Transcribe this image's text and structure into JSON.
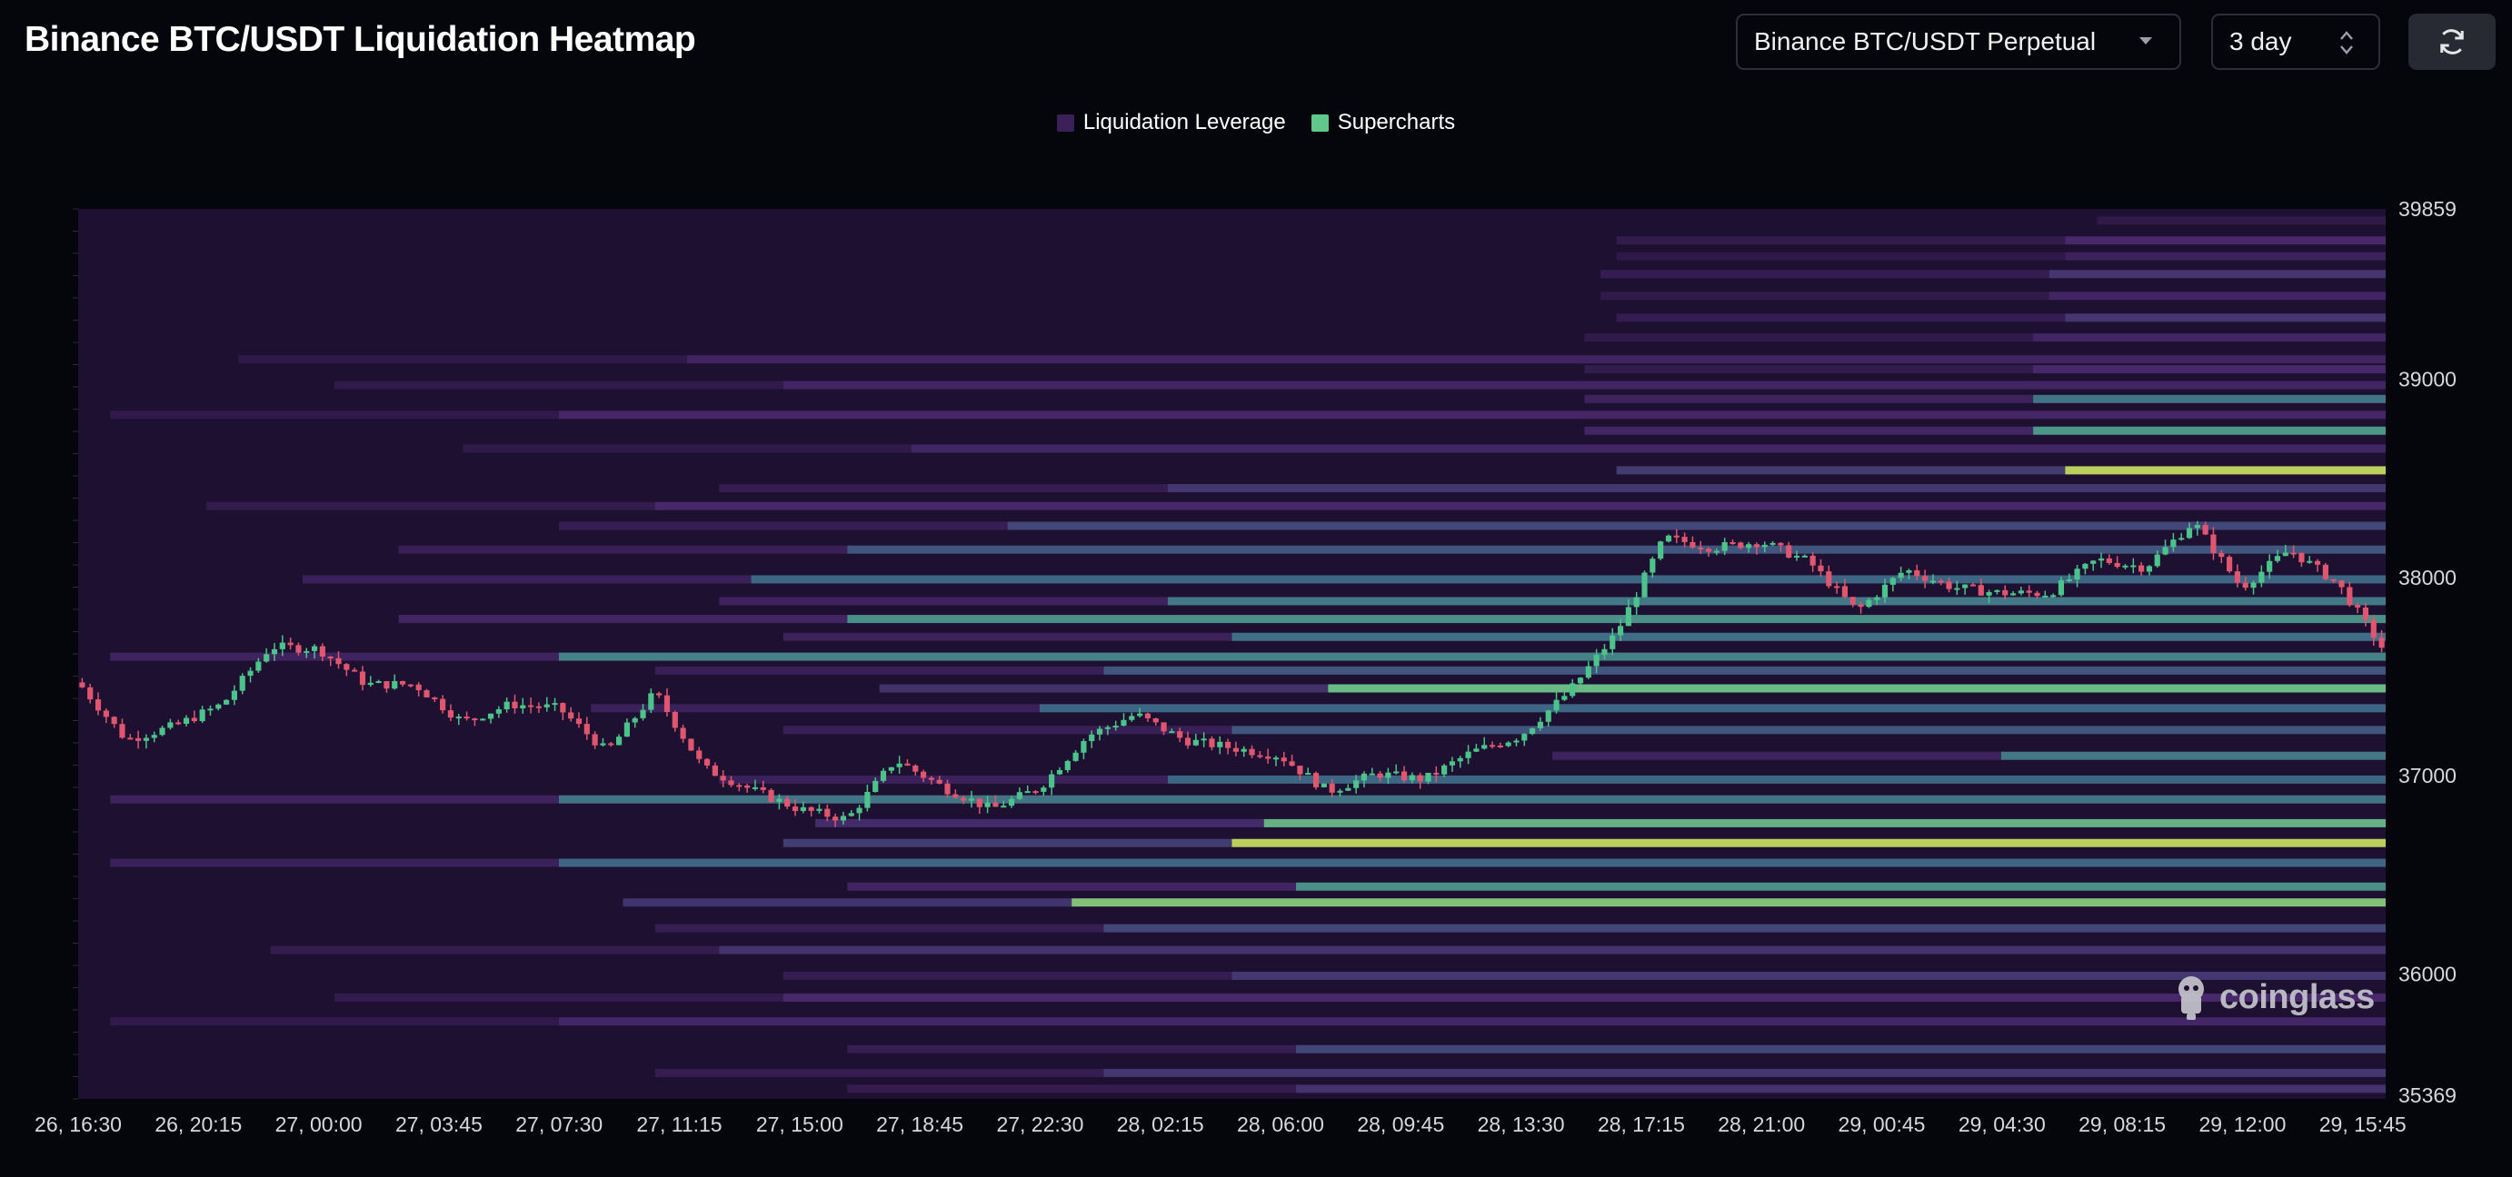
{
  "header": {
    "title": "Binance BTC/USDT Liquidation Heatmap",
    "market_select": "Binance BTC/USDT Perpetual",
    "period_select": "3 day",
    "refresh_icon": "refresh-icon"
  },
  "legend": {
    "items": [
      {
        "label": "Liquidation Leverage",
        "color": "#3a1f58"
      },
      {
        "label": "Supercharts",
        "color": "#5fc88a"
      }
    ]
  },
  "watermark": "coinglass",
  "colors": {
    "background": "#05060b",
    "heatmap_low": "#1d1030",
    "heatmap_high": "#f4e64a",
    "candle_up": "#4cc38a",
    "candle_down": "#e0566f"
  },
  "chart_data": {
    "type": "heatmap",
    "title": "Binance BTC/USDT Liquidation Heatmap",
    "x_ticks": [
      "26, 16:30",
      "26, 20:15",
      "27, 00:00",
      "27, 03:45",
      "27, 07:30",
      "27, 11:15",
      "27, 15:00",
      "27, 18:45",
      "27, 22:30",
      "28, 02:15",
      "28, 06:00",
      "28, 09:45",
      "28, 13:30",
      "28, 17:15",
      "28, 21:00",
      "29, 00:45",
      "29, 04:30",
      "29, 08:15",
      "29, 12:00",
      "29, 15:45"
    ],
    "y_ticks": [
      39859,
      39000,
      38000,
      37000,
      36000,
      35369
    ],
    "ylim": [
      35369,
      39859
    ],
    "x_range_hours": [
      0,
      72
    ],
    "y_axis_position": "right",
    "legend_position": "top-center",
    "grid": false,
    "price_path": [
      [
        0,
        37470
      ],
      [
        1.5,
        37180
      ],
      [
        3,
        37250
      ],
      [
        4.5,
        37360
      ],
      [
        6,
        37650
      ],
      [
        7.5,
        37640
      ],
      [
        9,
        37460
      ],
      [
        10.5,
        37460
      ],
      [
        12,
        37270
      ],
      [
        13.5,
        37360
      ],
      [
        15,
        37340
      ],
      [
        16.5,
        37120
      ],
      [
        18,
        37420
      ],
      [
        19.5,
        37040
      ],
      [
        21,
        36930
      ],
      [
        22.5,
        36830
      ],
      [
        24,
        36780
      ],
      [
        25.5,
        37080
      ],
      [
        27,
        36940
      ],
      [
        28.5,
        36830
      ],
      [
        30,
        36940
      ],
      [
        31.5,
        37200
      ],
      [
        33,
        37310
      ],
      [
        34.5,
        37180
      ],
      [
        36,
        37140
      ],
      [
        37.5,
        37100
      ],
      [
        39,
        36920
      ],
      [
        40.5,
        37010
      ],
      [
        42,
        36980
      ],
      [
        43.5,
        37120
      ],
      [
        45,
        37200
      ],
      [
        46.5,
        37420
      ],
      [
        48,
        37720
      ],
      [
        49.5,
        38200
      ],
      [
        51,
        38150
      ],
      [
        52.5,
        38180
      ],
      [
        54,
        38080
      ],
      [
        55.5,
        37830
      ],
      [
        57,
        38040
      ],
      [
        58.5,
        37950
      ],
      [
        60,
        37920
      ],
      [
        61.5,
        37920
      ],
      [
        63,
        38090
      ],
      [
        64.5,
        38050
      ],
      [
        66,
        38280
      ],
      [
        67.5,
        37950
      ],
      [
        69,
        38140
      ],
      [
        70.5,
        37970
      ],
      [
        72,
        37620
      ]
    ],
    "liquidation_bands": [
      {
        "price": 39800,
        "from_h": 63,
        "level": 0.3
      },
      {
        "price": 39700,
        "from_h": 48,
        "level": 0.35
      },
      {
        "price": 39620,
        "from_h": 48,
        "level": 0.25
      },
      {
        "price": 39530,
        "from_h": 47.5,
        "level": 0.4
      },
      {
        "price": 39420,
        "from_h": 47.5,
        "level": 0.3
      },
      {
        "price": 39310,
        "from_h": 48,
        "level": 0.4
      },
      {
        "price": 39210,
        "from_h": 47,
        "level": 0.3
      },
      {
        "price": 39100,
        "from_h": 5,
        "level": 0.28
      },
      {
        "price": 39050,
        "from_h": 47,
        "level": 0.35
      },
      {
        "price": 38970,
        "from_h": 8,
        "level": 0.3
      },
      {
        "price": 38900,
        "from_h": 47,
        "level": 0.6
      },
      {
        "price": 38820,
        "from_h": 1,
        "level": 0.32
      },
      {
        "price": 38740,
        "from_h": 47,
        "level": 0.72
      },
      {
        "price": 38650,
        "from_h": 12,
        "level": 0.3
      },
      {
        "price": 38540,
        "from_h": 48,
        "level": 0.95
      },
      {
        "price": 38450,
        "from_h": 20,
        "level": 0.4
      },
      {
        "price": 38360,
        "from_h": 4,
        "level": 0.35
      },
      {
        "price": 38260,
        "from_h": 15,
        "level": 0.45
      },
      {
        "price": 38140,
        "from_h": 10,
        "level": 0.5
      },
      {
        "price": 37990,
        "from_h": 7,
        "level": 0.55
      },
      {
        "price": 37880,
        "from_h": 20,
        "level": 0.62
      },
      {
        "price": 37790,
        "from_h": 10,
        "level": 0.7
      },
      {
        "price": 37700,
        "from_h": 22,
        "level": 0.58
      },
      {
        "price": 37600,
        "from_h": 1,
        "level": 0.65
      },
      {
        "price": 37530,
        "from_h": 18,
        "level": 0.5
      },
      {
        "price": 37440,
        "from_h": 25,
        "level": 0.85
      },
      {
        "price": 37340,
        "from_h": 16,
        "level": 0.55
      },
      {
        "price": 37230,
        "from_h": 22,
        "level": 0.5
      },
      {
        "price": 37100,
        "from_h": 46,
        "level": 0.62
      },
      {
        "price": 36980,
        "from_h": 20,
        "level": 0.55
      },
      {
        "price": 36880,
        "from_h": 1,
        "level": 0.6
      },
      {
        "price": 36760,
        "from_h": 23,
        "level": 0.82
      },
      {
        "price": 36660,
        "from_h": 22,
        "level": 0.95
      },
      {
        "price": 36560,
        "from_h": 1,
        "level": 0.55
      },
      {
        "price": 36440,
        "from_h": 24,
        "level": 0.7
      },
      {
        "price": 36360,
        "from_h": 17,
        "level": 0.88
      },
      {
        "price": 36230,
        "from_h": 18,
        "level": 0.45
      },
      {
        "price": 36120,
        "from_h": 6,
        "level": 0.38
      },
      {
        "price": 35990,
        "from_h": 22,
        "level": 0.4
      },
      {
        "price": 35880,
        "from_h": 8,
        "level": 0.35
      },
      {
        "price": 35760,
        "from_h": 1,
        "level": 0.32
      },
      {
        "price": 35620,
        "from_h": 24,
        "level": 0.45
      },
      {
        "price": 35500,
        "from_h": 18,
        "level": 0.4
      },
      {
        "price": 35420,
        "from_h": 24,
        "level": 0.38
      }
    ]
  }
}
